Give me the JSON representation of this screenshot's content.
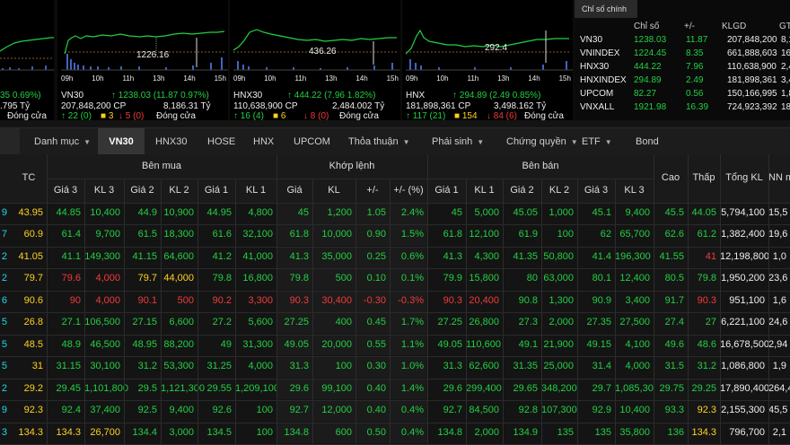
{
  "panels": [
    {
      "key": "vnindex",
      "axis_labels": [],
      "value_label": "",
      "line1": {
        "name": "",
        "change": "35 0.69%)"
      },
      "line2": {
        "vol": "",
        "val": ".795 Tỷ"
      },
      "line3": {
        "up": "",
        "flat": "",
        "down": "",
        "status": "Đóng cửa"
      }
    },
    {
      "key": "vn30",
      "axis_labels": [
        "09h",
        "10h",
        "11h",
        "13h",
        "14h",
        "15h"
      ],
      "value_label": "1226.16",
      "line1": {
        "name": "VN30",
        "change": "↑ 1238.03 (11.87 0.97%)"
      },
      "line2": {
        "vol": "207,848,200 CP",
        "val": "8,186.31 Tỷ"
      },
      "line3": {
        "up": "↑ 22 (0)",
        "flat": "■ 3",
        "down": "↓ 5 (0)",
        "status": "Đóng cửa"
      }
    },
    {
      "key": "hnx30",
      "axis_labels": [
        "09h",
        "10h",
        "11h",
        "13h",
        "14h",
        "15h"
      ],
      "value_label": "436.26",
      "line1": {
        "name": "HNX30",
        "change": "↑ 444.22 (7.96 1.82%)"
      },
      "line2": {
        "vol": "110,638,900 CP",
        "val": "2,484.002 Tỷ"
      },
      "line3": {
        "up": "↑ 16 (4)",
        "flat": "■ 6",
        "down": "↓ 8 (0)",
        "status": "Đóng cửa"
      }
    },
    {
      "key": "hnx",
      "axis_labels": [
        "09h",
        "10h",
        "11h",
        "13h",
        "14h",
        "15h"
      ],
      "value_label": "292.4",
      "line1": {
        "name": "HNX",
        "change": "↑ 294.89 (2.49 0.85%)"
      },
      "line2": {
        "vol": "181,898,361 CP",
        "val": "3,498.162 Tỷ"
      },
      "line3": {
        "up": "↑ 117 (21)",
        "flat": "■ 154",
        "down": "↓ 84 (6)",
        "status": "Đóng cửa"
      }
    }
  ],
  "summary": {
    "tab": "Chỉ số chính",
    "headers": [
      "",
      "Chỉ số",
      "+/-",
      "KLGD",
      "GT"
    ],
    "rows": [
      {
        "name": "VN30",
        "index": "1238.03",
        "change": "11.87",
        "vol": "207,848,200",
        "val": "8,18"
      },
      {
        "name": "VNINDEX",
        "index": "1224.45",
        "change": "8.35",
        "vol": "661,888,603",
        "val": "16,03"
      },
      {
        "name": "HNX30",
        "index": "444.22",
        "change": "7.96",
        "vol": "110,638,900",
        "val": "2,48"
      },
      {
        "name": "HNXINDEX",
        "index": "294.89",
        "change": "2.49",
        "vol": "181,898,361",
        "val": "3,49"
      },
      {
        "name": "UPCOM",
        "index": "82.27",
        "change": "0.56",
        "vol": "150,166,995",
        "val": "1,81"
      },
      {
        "name": "VNXALL",
        "index": "1921.98",
        "change": "16.39",
        "vol": "724,923,392",
        "val": "18,2"
      }
    ]
  },
  "nav": {
    "items": [
      "Danh mục",
      "VN30",
      "HNX30",
      "HOSE",
      "HNX",
      "UPCOM",
      "Thỏa thuận",
      "Phái sinh",
      "Chứng quyền",
      "ETF",
      "Bond"
    ],
    "active": "VN30"
  },
  "table": {
    "group_headers": {
      "buy": "Bên mua",
      "match": "Khớp lệnh",
      "sell": "Bên bán"
    },
    "columns": [
      "",
      "TC",
      "Giá 3",
      "KL 3",
      "Giá 2",
      "KL 2",
      "Giá 1",
      "KL 1",
      "Giá",
      "KL",
      "+/-",
      "+/- (%)",
      "Giá 1",
      "KL 1",
      "Giá 2",
      "KL 2",
      "Giá 3",
      "KL 3",
      "Cao",
      "Thấp",
      "Tổng KL",
      "NN m"
    ],
    "rows": [
      {
        "sym": "9",
        "tc": "43.95",
        "b3p": "44.85",
        "b3v": "10,400",
        "b2p": "44.9",
        "b2v": "10,900",
        "b1p": "44.95",
        "b1v": "4,800",
        "p": "45",
        "v": "1,200",
        "chg": "1.05",
        "pct": "2.4%",
        "s1p": "45",
        "s1v": "5,000",
        "s2p": "45.05",
        "s2v": "1,000",
        "s3p": "45.1",
        "s3v": "9,400",
        "hi": "45.5",
        "lo": "44.05",
        "tot": "5,794,100",
        "nn": "15,5"
      },
      {
        "sym": "7",
        "tc": "60.9",
        "b3p": "61.4",
        "b3v": "9,700",
        "b2p": "61.5",
        "b2v": "18,300",
        "b1p": "61.6",
        "b1v": "32,100",
        "p": "61.8",
        "v": "10,000",
        "chg": "0.90",
        "pct": "1.5%",
        "s1p": "61.8",
        "s1v": "12,100",
        "s2p": "61.9",
        "s2v": "100",
        "s3p": "62",
        "s3v": "65,700",
        "hi": "62.6",
        "lo": "61.2",
        "tot": "1,382,400",
        "nn": "19,6"
      },
      {
        "sym": "2",
        "tc": "41.05",
        "b3p": "41.1",
        "b3v": "149,300",
        "b2p": "41.15",
        "b2v": "64,600",
        "b1p": "41.2",
        "b1v": "41,000",
        "p": "41.3",
        "v": "35,000",
        "chg": "0.25",
        "pct": "0.6%",
        "s1p": "41.3",
        "s1v": "4,300",
        "s2p": "41.35",
        "s2v": "50,800",
        "s3p": "41.4",
        "s3v": "196,300",
        "hi": "41.55",
        "lo": "41",
        "tot": "12,198,800",
        "nn": "1,0"
      },
      {
        "sym": "2",
        "tc": "79.7",
        "b3p": "79.6",
        "b3v": "4,000",
        "b2p": "79.7",
        "b2v": "44,000",
        "b1p": "79.8",
        "b1v": "16,800",
        "p": "79.8",
        "v": "500",
        "chg": "0.10",
        "pct": "0.1%",
        "s1p": "79.9",
        "s1v": "15,800",
        "s2p": "80",
        "s2v": "63,000",
        "s3p": "80.1",
        "s3v": "12,400",
        "hi": "80.5",
        "lo": "79.8",
        "tot": "1,950,200",
        "nn": "23,6"
      },
      {
        "sym": "6",
        "tc": "90.6",
        "b3p": "90",
        "b3v": "4,000",
        "b2p": "90.1",
        "b2v": "500",
        "b1p": "90.2",
        "b1v": "3,300",
        "p": "90.3",
        "v": "30,400",
        "chg": "-0.30",
        "pct": "-0.3%",
        "s1p": "90.3",
        "s1v": "20,400",
        "s2p": "90.8",
        "s2v": "1,300",
        "s3p": "90.9",
        "s3v": "3,400",
        "hi": "91.7",
        "lo": "90.3",
        "tot": "951,100",
        "nn": "1,6"
      },
      {
        "sym": "5",
        "tc": "26.8",
        "b3p": "27.1",
        "b3v": "106,500",
        "b2p": "27.15",
        "b2v": "6,600",
        "b1p": "27.2",
        "b1v": "5,600",
        "p": "27.25",
        "v": "400",
        "chg": "0.45",
        "pct": "1.7%",
        "s1p": "27.25",
        "s1v": "26,800",
        "s2p": "27.3",
        "s2v": "2,000",
        "s3p": "27.35",
        "s3v": "27,500",
        "hi": "27.4",
        "lo": "27",
        "tot": "6,221,100",
        "nn": "24,6"
      },
      {
        "sym": "5",
        "tc": "48.5",
        "b3p": "48.9",
        "b3v": "46,500",
        "b2p": "48.95",
        "b2v": "88,200",
        "b1p": "49",
        "b1v": "31,300",
        "p": "49.05",
        "v": "20,000",
        "chg": "0.55",
        "pct": "1.1%",
        "s1p": "49.05",
        "s1v": "110,600",
        "s2p": "49.1",
        "s2v": "21,900",
        "s3p": "49.15",
        "s3v": "4,100",
        "hi": "49.6",
        "lo": "48.6",
        "tot": "16,678,500",
        "nn": "2,94"
      },
      {
        "sym": "5",
        "tc": "31",
        "b3p": "31.15",
        "b3v": "30,100",
        "b2p": "31.2",
        "b2v": "53,300",
        "b1p": "31.25",
        "b1v": "4,000",
        "p": "31.3",
        "v": "100",
        "chg": "0.30",
        "pct": "1.0%",
        "s1p": "31.3",
        "s1v": "62,600",
        "s2p": "31.35",
        "s2v": "25,000",
        "s3p": "31.4",
        "s3v": "4,000",
        "hi": "31.5",
        "lo": "31.2",
        "tot": "1,086,800",
        "nn": "1,9"
      },
      {
        "sym": "2",
        "tc": "29.2",
        "b3p": "29.45",
        "b3v": "1,101,800",
        "b2p": "29.5",
        "b2v": "1,121,300",
        "b1p": "29.55",
        "b1v": "1,209,100",
        "p": "29.6",
        "v": "99,100",
        "chg": "0.40",
        "pct": "1.4%",
        "s1p": "29.6",
        "s1v": "299,400",
        "s2p": "29.65",
        "s2v": "348,200",
        "s3p": "29.7",
        "s3v": "1,085,300",
        "hi": "29.75",
        "lo": "29.25",
        "tot": "17,890,400",
        "nn": "264,4"
      },
      {
        "sym": "9",
        "tc": "92.3",
        "b3p": "92.4",
        "b3v": "37,400",
        "b2p": "92.5",
        "b2v": "9,400",
        "b1p": "92.6",
        "b1v": "100",
        "p": "92.7",
        "v": "12,000",
        "chg": "0.40",
        "pct": "0.4%",
        "s1p": "92.7",
        "s1v": "84,500",
        "s2p": "92.8",
        "s2v": "107,300",
        "s3p": "92.9",
        "s3v": "10,400",
        "hi": "93.3",
        "lo": "92.3",
        "tot": "2,155,300",
        "nn": "45,5"
      },
      {
        "sym": "3",
        "tc": "134.3",
        "b3p": "134.3",
        "b3v": "26,700",
        "b2p": "134.4",
        "b2v": "3,000",
        "b1p": "134.5",
        "b1v": "100",
        "p": "134.8",
        "v": "600",
        "chg": "0.50",
        "pct": "0.4%",
        "s1p": "134.8",
        "s1v": "2,000",
        "s2p": "134.9",
        "s2v": "135",
        "s3p": "135",
        "s3v": "35,800",
        "hi": "136",
        "lo": "134.3",
        "tot": "796,700",
        "nn": "2,1"
      }
    ]
  },
  "colors": {
    "up": "#22d042",
    "down": "#f23a3a",
    "ref": "#ffd21f",
    "ceiling": "#d04bf0",
    "floor": "#21d7e6",
    "background": "#141414"
  }
}
